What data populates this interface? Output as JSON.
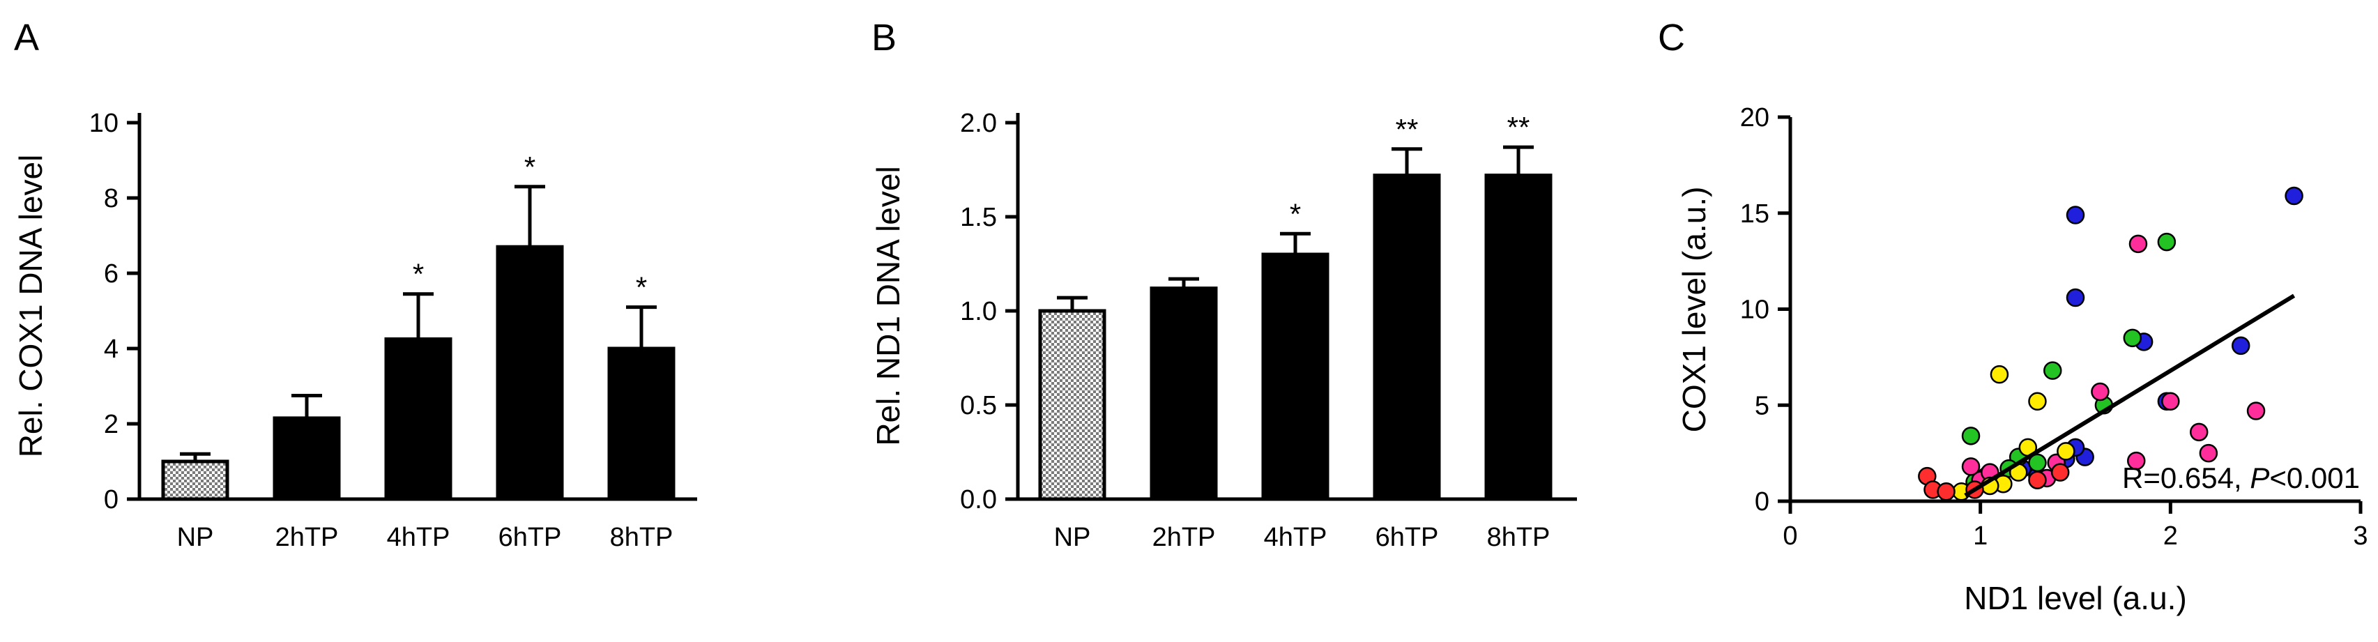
{
  "chart_data": [
    {
      "panel": "A",
      "type": "bar",
      "ylabel": "Rel. COX1 DNA level",
      "ylim": [
        0,
        10
      ],
      "yticks": [
        "0",
        "2",
        "4",
        "6",
        "8",
        "10"
      ],
      "categories": [
        "NP",
        "2hTP",
        "4hTP",
        "6hTP",
        "8hTP"
      ],
      "values": [
        1.0,
        2.15,
        4.25,
        6.7,
        4.0
      ],
      "errors": [
        0.2,
        0.6,
        1.2,
        1.6,
        1.1
      ],
      "significance": [
        "",
        "",
        "*",
        "*",
        "*"
      ],
      "bar_fill": [
        "hatched",
        "solid",
        "solid",
        "solid",
        "solid"
      ]
    },
    {
      "panel": "B",
      "type": "bar",
      "ylabel": "Rel. ND1 DNA level",
      "ylim": [
        0,
        2.0
      ],
      "yticks": [
        "0.0",
        "0.5",
        "1.0",
        "1.5",
        "2.0"
      ],
      "categories": [
        "NP",
        "2hTP",
        "4hTP",
        "6hTP",
        "8hTP"
      ],
      "values": [
        1.0,
        1.12,
        1.3,
        1.72,
        1.72
      ],
      "errors": [
        0.07,
        0.05,
        0.11,
        0.14,
        0.15
      ],
      "significance": [
        "",
        "",
        "*",
        "**",
        "**"
      ],
      "bar_fill": [
        "hatched",
        "solid",
        "solid",
        "solid",
        "solid"
      ]
    },
    {
      "panel": "C",
      "type": "scatter",
      "xlabel": "ND1 level (a.u.)",
      "ylabel": "COX1 level (a.u.)",
      "xlim": [
        0,
        3
      ],
      "ylim": [
        0,
        20
      ],
      "xticks": [
        "0",
        "1",
        "2",
        "3"
      ],
      "yticks": [
        "0",
        "5",
        "10",
        "15",
        "20"
      ],
      "annotation_pre": "R=0.654, ",
      "annotation_p": "P",
      "annotation_post": "<0.001",
      "fit_line": {
        "x": [
          0.92,
          2.65
        ],
        "y": [
          0.3,
          10.7
        ]
      },
      "series": [
        {
          "color": "#1f1fdc",
          "points": [
            [
              1.5,
              14.9
            ],
            [
              1.5,
              10.6
            ],
            [
              1.86,
              8.3
            ],
            [
              2.65,
              15.9
            ],
            [
              2.37,
              8.1
            ],
            [
              1.55,
              2.3
            ],
            [
              1.22,
              1.7
            ],
            [
              1.45,
              2.2
            ],
            [
              1.98,
              5.2
            ],
            [
              1.5,
              2.8
            ],
            [
              1.3,
              1.3
            ]
          ]
        },
        {
          "color": "#22c322",
          "points": [
            [
              1.98,
              13.5
            ],
            [
              1.8,
              8.5
            ],
            [
              1.38,
              6.8
            ],
            [
              1.65,
              5.0
            ],
            [
              0.95,
              3.4
            ],
            [
              1.2,
              2.3
            ],
            [
              1.15,
              1.7
            ],
            [
              1.03,
              1.3
            ],
            [
              0.97,
              1.0
            ],
            [
              1.3,
              2.0
            ]
          ]
        },
        {
          "color": "#ff2e9a",
          "points": [
            [
              1.83,
              13.4
            ],
            [
              1.63,
              5.7
            ],
            [
              2.45,
              4.7
            ],
            [
              2.15,
              3.6
            ],
            [
              2.0,
              5.2
            ],
            [
              2.2,
              2.5
            ],
            [
              1.82,
              2.1
            ],
            [
              1.4,
              2.0
            ],
            [
              1.35,
              1.2
            ],
            [
              1.0,
              1.1
            ],
            [
              0.95,
              1.8
            ],
            [
              1.05,
              1.5
            ]
          ]
        },
        {
          "color": "#ffeb00",
          "points": [
            [
              1.1,
              6.6
            ],
            [
              1.3,
              5.2
            ],
            [
              1.45,
              2.6
            ],
            [
              1.25,
              2.8
            ],
            [
              1.12,
              0.9
            ],
            [
              1.05,
              0.8
            ],
            [
              0.9,
              0.5
            ],
            [
              1.2,
              1.5
            ]
          ]
        },
        {
          "color": "#ff2e2e",
          "points": [
            [
              0.72,
              1.3
            ],
            [
              0.75,
              0.6
            ],
            [
              0.82,
              0.5
            ],
            [
              0.97,
              0.6
            ],
            [
              1.3,
              1.1
            ],
            [
              1.42,
              1.5
            ]
          ]
        }
      ]
    }
  ]
}
